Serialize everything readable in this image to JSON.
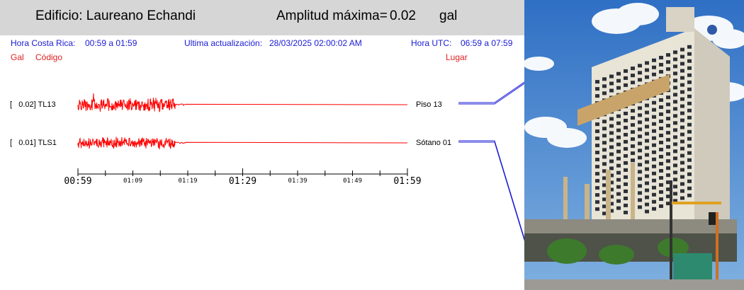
{
  "header": {
    "building_label": "Edificio: Laureano Echandi",
    "amplitude_label": "Amplitud máxima=",
    "amplitude_value": "0.02",
    "amplitude_unit": "gal",
    "background": "#d6d6d6"
  },
  "info": {
    "local_time_label": "Hora Costa Rica:",
    "local_time_value": "00:59 a 01:59",
    "last_update_label": "Ultima actualización:",
    "last_update_value": "28/03/2025 02:00:02 AM",
    "utc_label": "Hora UTC:",
    "utc_value": "06:59 a 07:59",
    "text_color": "#1a1ad6"
  },
  "columns": {
    "gal": "Gal",
    "code": "Código",
    "place": "Lugar",
    "color": "#e02020"
  },
  "stations": [
    {
      "gal": "[   0.02] TL13",
      "place": "Piso 13"
    },
    {
      "gal": "[   0.01] TLS1",
      "place": "Sótano 01"
    }
  ],
  "time_axis": {
    "ticks": [
      "00:59",
      "01:09",
      "01:19",
      "01:29",
      "01:39",
      "01:49",
      "01:59"
    ],
    "major": [
      true,
      false,
      false,
      true,
      false,
      false,
      true
    ]
  },
  "trace_color": "#ff0000",
  "leader_color": "#1a1ad6",
  "photo": {
    "subject": "building-photo",
    "sky_color": "#4a86d0",
    "facade_color": "#e8e4d6"
  }
}
